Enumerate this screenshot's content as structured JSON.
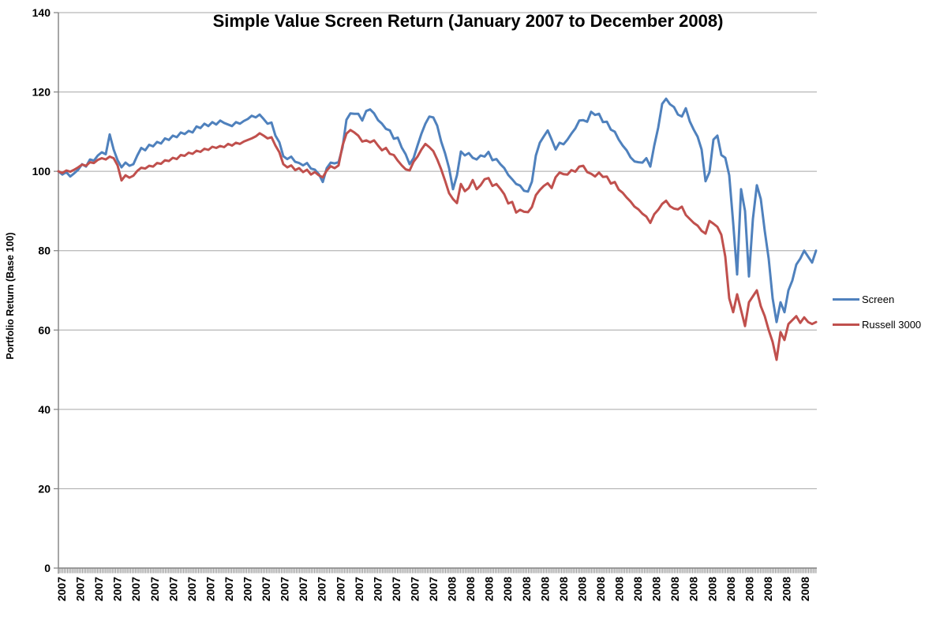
{
  "chart_data": {
    "type": "line",
    "title": "Simple Value Screen Return (January 2007 to December 2008)",
    "ylabel": "Portfolio Return (Base 100)",
    "xlabel": "",
    "ylim": [
      0,
      140
    ],
    "y_ticks": [
      0,
      20,
      40,
      60,
      80,
      100,
      120,
      140
    ],
    "grid": "horizontal",
    "legend_position": "right",
    "x_tick_labels": [
      "2007",
      "2007",
      "2007",
      "2007",
      "2007",
      "2007",
      "2007",
      "2007",
      "2007",
      "2007",
      "2007",
      "2007",
      "2007",
      "2007",
      "2007",
      "2007",
      "2007",
      "2007",
      "2007",
      "2007",
      "2007",
      "2008",
      "2008",
      "2008",
      "2008",
      "2008",
      "2008",
      "2008",
      "2008",
      "2008",
      "2008",
      "2008",
      "2008",
      "2008",
      "2008",
      "2008",
      "2008",
      "2008",
      "2008",
      "2008",
      "2008"
    ],
    "series": [
      {
        "name": "Screen",
        "color": "#4F81BD",
        "values": [
          100,
          99.2,
          99.8,
          98.7,
          99.5,
          100.4,
          101.8,
          101.2,
          103.0,
          102.7,
          104.0,
          104.8,
          104.3,
          109.3,
          105.5,
          102.8,
          101.0,
          102.2,
          101.4,
          101.8,
          104.0,
          105.9,
          105.3,
          106.7,
          106.3,
          107.4,
          107.0,
          108.3,
          107.9,
          109.0,
          108.6,
          109.8,
          109.4,
          110.2,
          109.8,
          111.3,
          110.9,
          112.0,
          111.4,
          112.4,
          111.8,
          112.8,
          112.2,
          111.8,
          111.4,
          112.4,
          112.0,
          112.7,
          113.2,
          114.0,
          113.6,
          114.3,
          113.2,
          112.0,
          112.3,
          109.0,
          107.3,
          103.8,
          103.1,
          103.7,
          102.4,
          102.1,
          101.5,
          102.1,
          100.7,
          100.4,
          99.3,
          97.3,
          100.8,
          102.2,
          102.0,
          102.3,
          106.0,
          113.0,
          114.6,
          114.5,
          114.5,
          112.8,
          115.2,
          115.6,
          114.6,
          112.9,
          112.0,
          110.7,
          110.3,
          108.2,
          108.5,
          106.0,
          104.3,
          101.8,
          103.3,
          106.5,
          109.5,
          112.0,
          113.8,
          113.6,
          111.5,
          107.5,
          104.5,
          100.8,
          95.5,
          99.0,
          105.0,
          104.0,
          104.6,
          103.4,
          103.0,
          104.0,
          103.7,
          104.9,
          102.8,
          103.1,
          101.8,
          100.8,
          99.1,
          98.0,
          96.8,
          96.4,
          95.1,
          94.9,
          97.4,
          104.0,
          107.2,
          108.8,
          110.3,
          108.0,
          105.5,
          107.2,
          106.8,
          108.0,
          109.5,
          110.8,
          112.8,
          112.9,
          112.5,
          115.0,
          114.2,
          114.5,
          112.4,
          112.5,
          110.5,
          110.0,
          108.0,
          106.5,
          105.3,
          103.5,
          102.5,
          102.3,
          102.2,
          103.3,
          101.2,
          106.5,
          111.0,
          117.0,
          118.3,
          116.9,
          116.2,
          114.3,
          113.8,
          115.9,
          112.6,
          110.5,
          108.7,
          105.5,
          97.5,
          99.8,
          108.0,
          109.0,
          104.1,
          103.4,
          99.0,
          87.0,
          74.0,
          95.5,
          90.0,
          73.5,
          88.0,
          96.5,
          93.0,
          85.0,
          78.0,
          68.0,
          62.0,
          67.0,
          64.5,
          70.0,
          72.5,
          76.5,
          78.0,
          80.0,
          78.5,
          77.0,
          80.0
        ]
      },
      {
        "name": "Russell 3000",
        "color": "#C0504D",
        "values": [
          100,
          99.6,
          100.2,
          99.9,
          100.4,
          101.0,
          101.7,
          101.4,
          102.3,
          102.1,
          102.9,
          103.3,
          103.0,
          103.7,
          103.3,
          101.5,
          97.7,
          99.0,
          98.4,
          98.9,
          100.1,
          100.9,
          100.7,
          101.4,
          101.2,
          102.1,
          101.9,
          102.8,
          102.6,
          103.4,
          103.1,
          104.1,
          103.9,
          104.7,
          104.4,
          105.2,
          104.9,
          105.7,
          105.4,
          106.2,
          105.9,
          106.4,
          106.1,
          106.9,
          106.5,
          107.2,
          106.9,
          107.5,
          107.9,
          108.3,
          108.8,
          109.6,
          109.0,
          108.3,
          108.6,
          106.5,
          104.8,
          101.8,
          101.0,
          101.5,
          100.3,
          100.8,
          99.8,
          100.4,
          99.2,
          99.8,
          99.0,
          98.5,
          100.2,
          101.3,
          100.8,
          101.5,
          106.5,
          109.5,
          110.4,
          109.8,
          109.0,
          107.5,
          107.8,
          107.3,
          107.8,
          106.5,
          105.3,
          105.9,
          104.4,
          104.1,
          102.7,
          101.5,
          100.5,
          100.2,
          102.4,
          103.7,
          105.5,
          106.9,
          106.1,
          105.1,
          103.0,
          100.5,
          97.6,
          94.5,
          93.0,
          92.0,
          96.8,
          95.0,
          95.8,
          97.8,
          95.5,
          96.5,
          98.0,
          98.3,
          96.3,
          96.8,
          95.6,
          94.2,
          91.9,
          92.3,
          89.6,
          90.3,
          89.8,
          89.7,
          91.0,
          94.0,
          95.3,
          96.3,
          97.0,
          95.8,
          98.5,
          99.7,
          99.3,
          99.2,
          100.3,
          99.9,
          101.2,
          101.4,
          99.8,
          99.4,
          98.7,
          99.7,
          98.6,
          98.7,
          96.9,
          97.3,
          95.4,
          94.6,
          93.4,
          92.4,
          91.1,
          90.4,
          89.3,
          88.6,
          87.0,
          89.2,
          90.3,
          91.8,
          92.6,
          91.2,
          90.6,
          90.4,
          91.1,
          89.0,
          88.0,
          87.0,
          86.3,
          85.0,
          84.3,
          87.5,
          86.8,
          86.0,
          84.0,
          78.5,
          68.0,
          64.5,
          69.0,
          65.0,
          61.0,
          67.0,
          68.5,
          70.0,
          66.0,
          63.5,
          60.0,
          57.0,
          52.5,
          59.5,
          57.5,
          61.5,
          62.5,
          63.5,
          61.8,
          63.2,
          62.0,
          61.5,
          62.0
        ]
      }
    ]
  }
}
